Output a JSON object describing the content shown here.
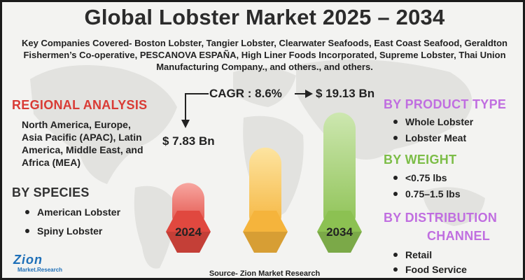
{
  "title": "Global Lobster Market 2025 – 2034",
  "subtitle": "Key Companies Covered- Boston Lobster, Tangier Lobster, Clearwater Seafoods, East Coast Seafood, Geraldton Fishermen’s Co-operative, PESCANOVA ESPAÑA, High Liner Foods Incorporated, Supreme Lobster, Thai Union Manufacturing Company., and others., and others.",
  "regional": {
    "heading": "REGIONAL ANALYSIS",
    "text": "North America, Europe, Asia Pacific (APAC), Latin America, Middle East, and Africa (MEA)"
  },
  "species": {
    "heading": "BY SPECIES",
    "items": [
      "American Lobster",
      "Spiny Lobster"
    ]
  },
  "product_type": {
    "heading": "BY PRODUCT TYPE",
    "items": [
      "Whole Lobster",
      "Lobster Meat"
    ]
  },
  "weight": {
    "heading": "BY WEIGHT",
    "items": [
      "<0.75 lbs",
      "0.75–1.5 lbs"
    ]
  },
  "distribution": {
    "heading_line1": "BY DISTRIBUTION",
    "heading_line2": "CHANNEL",
    "items": [
      "Retail",
      "Food Service"
    ]
  },
  "cagr_label": "CAGR : 8.6%",
  "chart_data": {
    "type": "bar",
    "categories": [
      "2024",
      "",
      "2034"
    ],
    "values": [
      7.83,
      13.5,
      19.13
    ],
    "value_labels": [
      "$ 7.83 Bn",
      "",
      "$ 19.13 Bn"
    ],
    "ylim": [
      0,
      20
    ],
    "colors": [
      "#e0483f",
      "#f5b43c",
      "#8cc152"
    ],
    "title": "",
    "xlabel": "",
    "ylabel": ""
  },
  "source": "Source- Zion Market Research",
  "logo": {
    "main": "Zion",
    "sub": "Market.Research"
  }
}
